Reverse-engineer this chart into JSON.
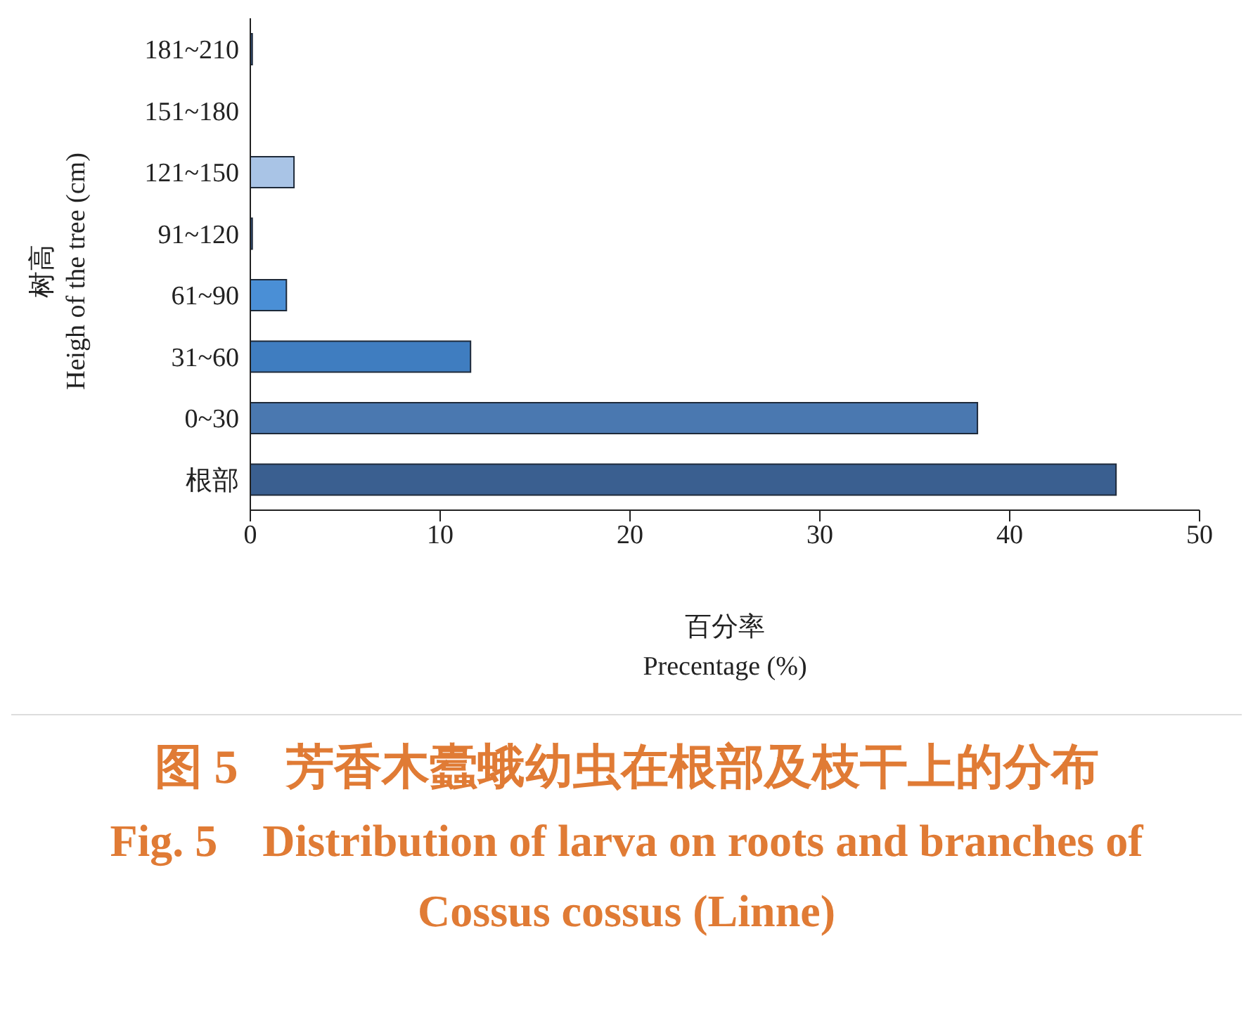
{
  "chart_data": {
    "type": "bar",
    "orientation": "horizontal",
    "title": "图 5　芳香木蠹蛾幼虫在根部及枝干上的分布",
    "subtitle": "Fig. 5　Distribution of larva on roots and branches of Cossus cossus (Linne)",
    "xlabel": "百分率\nPrecentage (%)",
    "ylabel": "树高\nHeigh of the tree (cm)",
    "categories": [
      "181~210",
      "151~180",
      "121~150",
      "91~120",
      "61~90",
      "31~60",
      "0~30",
      "根部"
    ],
    "values": [
      0.1,
      0,
      2.3,
      0.1,
      1.9,
      11.6,
      38.3,
      45.6
    ],
    "colors": [
      "#3a5f90",
      "#3a5f90",
      "#a9c4e6",
      "#3a5f90",
      "#4a8fd6",
      "#3f7dc0",
      "#4a78b0",
      "#3a5f90"
    ],
    "xlim": [
      0,
      50
    ],
    "xticks": [
      0,
      10,
      20,
      30,
      40,
      50
    ],
    "grid": false
  }
}
